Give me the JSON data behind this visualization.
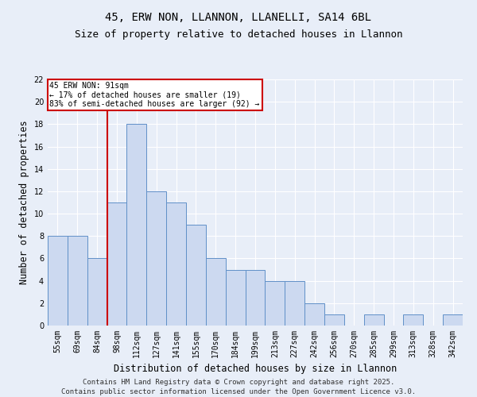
{
  "title": "45, ERW NON, LLANNON, LLANELLI, SA14 6BL",
  "subtitle": "Size of property relative to detached houses in Llannon",
  "xlabel": "Distribution of detached houses by size in Llannon",
  "ylabel": "Number of detached properties",
  "categories": [
    "55sqm",
    "69sqm",
    "84sqm",
    "98sqm",
    "112sqm",
    "127sqm",
    "141sqm",
    "155sqm",
    "170sqm",
    "184sqm",
    "199sqm",
    "213sqm",
    "227sqm",
    "242sqm",
    "256sqm",
    "270sqm",
    "285sqm",
    "299sqm",
    "313sqm",
    "328sqm",
    "342sqm"
  ],
  "values": [
    8,
    8,
    6,
    11,
    18,
    12,
    11,
    9,
    6,
    5,
    5,
    4,
    4,
    2,
    1,
    0,
    1,
    0,
    1,
    0,
    1
  ],
  "bar_color": "#ccd9f0",
  "bar_edge_color": "#6090c8",
  "background_color": "#e8eef8",
  "grid_color": "#ffffff",
  "red_line_x": 2.5,
  "annotation_text": "45 ERW NON: 91sqm\n← 17% of detached houses are smaller (19)\n83% of semi-detached houses are larger (92) →",
  "annotation_box_color": "#ffffff",
  "annotation_box_edge": "#cc0000",
  "ylim": [
    0,
    22
  ],
  "yticks": [
    0,
    2,
    4,
    6,
    8,
    10,
    12,
    14,
    16,
    18,
    20,
    22
  ],
  "footer": "Contains HM Land Registry data © Crown copyright and database right 2025.\nContains public sector information licensed under the Open Government Licence v3.0.",
  "title_fontsize": 10,
  "subtitle_fontsize": 9,
  "axis_label_fontsize": 8.5,
  "tick_fontsize": 7,
  "footer_fontsize": 6.5
}
